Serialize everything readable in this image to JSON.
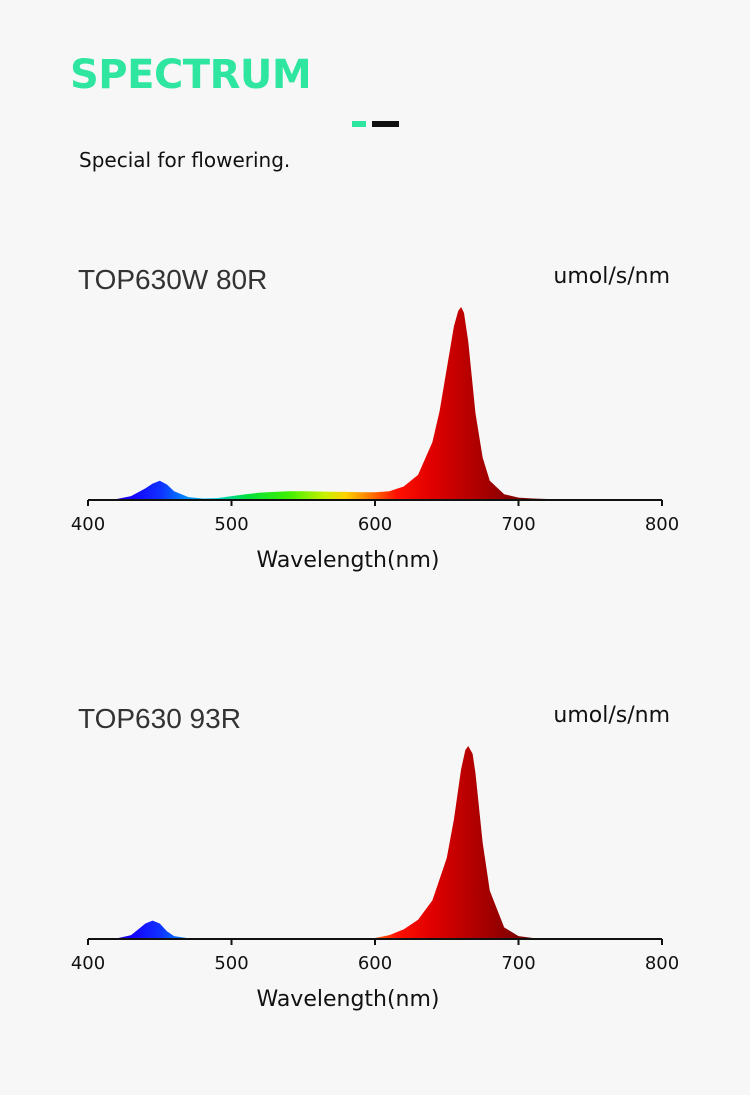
{
  "header": {
    "title": "SPECTRUM",
    "subtitle": "Special for flowering."
  },
  "colors": {
    "accent": "#2ee6a0",
    "dark": "#111111",
    "axis": "#111111"
  },
  "chart_data": [
    {
      "type": "area",
      "title": "TOP630W 80R",
      "ylabel": "umol/s/nm",
      "xlabel": "Wavelength(nm)",
      "xlim": [
        400,
        800
      ],
      "ylim": [
        0,
        1
      ],
      "xticks": [
        400,
        500,
        600,
        700,
        800
      ],
      "series": [
        {
          "x": [
            400,
            420,
            430,
            440,
            445,
            450,
            455,
            460,
            470,
            480,
            490,
            500,
            510,
            520,
            530,
            540,
            550,
            560,
            570,
            580,
            590,
            600,
            610,
            620,
            630,
            640,
            645,
            650,
            655,
            658,
            660,
            662,
            665,
            670,
            675,
            680,
            690,
            700,
            710,
            720,
            740,
            760,
            780,
            800
          ],
          "y": [
            0.0,
            0.005,
            0.02,
            0.06,
            0.085,
            0.1,
            0.08,
            0.045,
            0.015,
            0.008,
            0.01,
            0.02,
            0.03,
            0.038,
            0.042,
            0.045,
            0.045,
            0.044,
            0.043,
            0.042,
            0.04,
            0.04,
            0.045,
            0.07,
            0.13,
            0.3,
            0.46,
            0.68,
            0.9,
            0.98,
            1.0,
            0.97,
            0.82,
            0.45,
            0.22,
            0.1,
            0.03,
            0.012,
            0.008,
            0.005,
            0.003,
            0.001,
            0.0,
            0.0
          ]
        }
      ]
    },
    {
      "type": "area",
      "title": "TOP630 93R",
      "ylabel": "umol/s/nm",
      "xlabel": "Wavelength(nm)",
      "xlim": [
        400,
        800
      ],
      "ylim": [
        0,
        1
      ],
      "xticks": [
        400,
        500,
        600,
        700,
        800
      ],
      "series": [
        {
          "x": [
            400,
            420,
            430,
            435,
            440,
            445,
            450,
            455,
            460,
            470,
            480,
            500,
            550,
            600,
            610,
            620,
            630,
            640,
            650,
            655,
            660,
            663,
            665,
            668,
            670,
            675,
            680,
            690,
            700,
            710,
            720,
            740,
            800
          ],
          "y": [
            0.0,
            0.003,
            0.02,
            0.05,
            0.08,
            0.095,
            0.08,
            0.04,
            0.015,
            0.004,
            0.001,
            0.0,
            0.0,
            0.005,
            0.02,
            0.05,
            0.1,
            0.2,
            0.42,
            0.62,
            0.88,
            0.98,
            1.0,
            0.96,
            0.86,
            0.5,
            0.25,
            0.06,
            0.015,
            0.005,
            0.002,
            0.0,
            0.0
          ]
        }
      ]
    }
  ]
}
